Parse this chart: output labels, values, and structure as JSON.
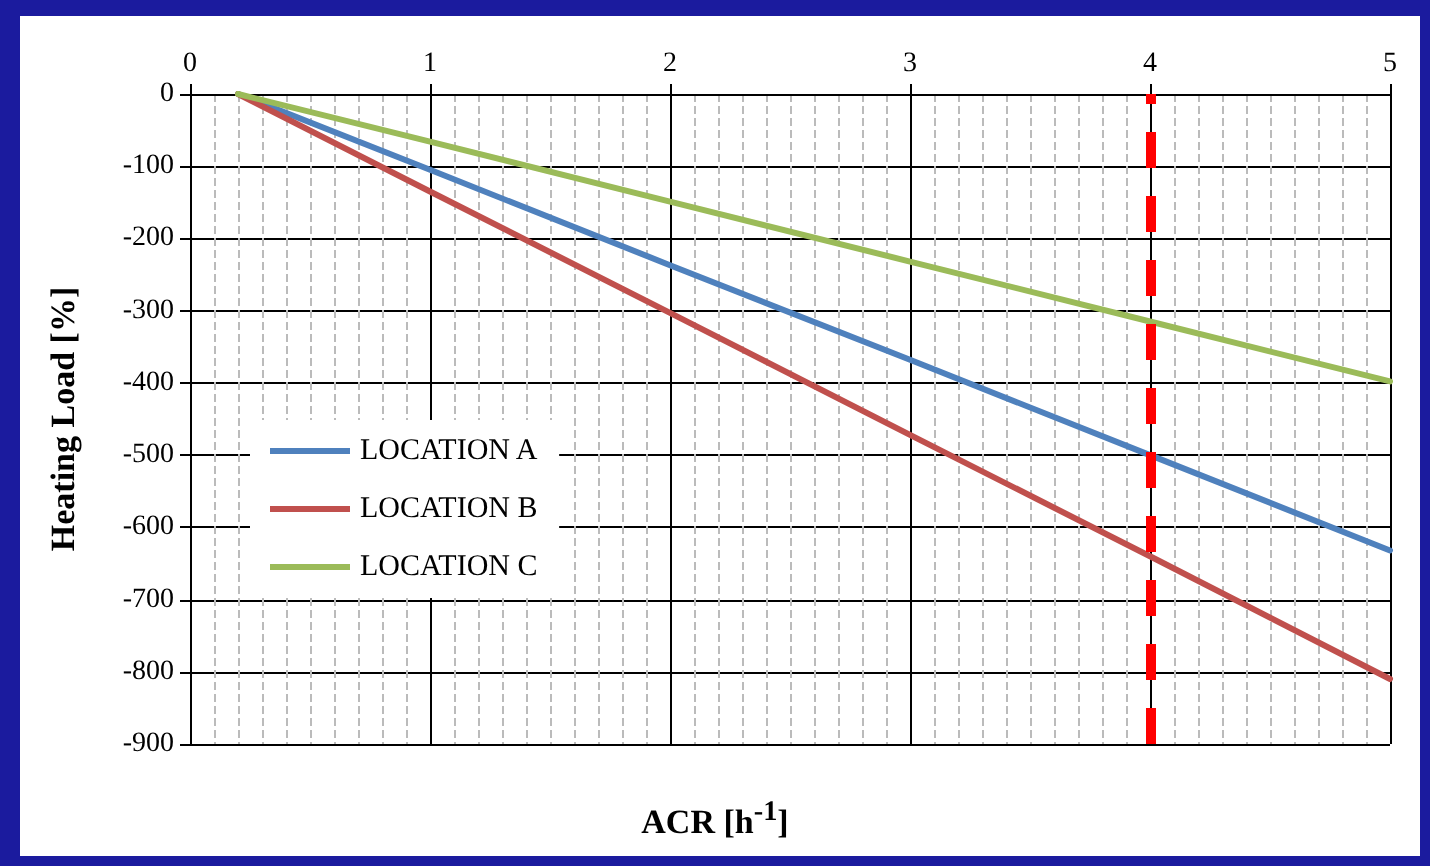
{
  "chart_data": {
    "type": "line",
    "xlabel": "ACR [h$^{-1}$]",
    "ylabel": "Heating Load [%]",
    "series": [
      {
        "name": "LOCATION A",
        "color": "#4f81bd",
        "x": [
          0.2,
          1,
          2,
          3,
          4,
          5
        ],
        "values": [
          0,
          -105,
          -237,
          -368,
          -500,
          -632
        ]
      },
      {
        "name": "LOCATION B",
        "color": "#c0504d",
        "x": [
          0.2,
          1,
          2,
          3,
          4,
          5
        ],
        "values": [
          0,
          -135,
          -303,
          -472,
          -640,
          -810
        ]
      },
      {
        "name": "LOCATION C",
        "color": "#9bbb59",
        "x": [
          0.2,
          1,
          2,
          3,
          4,
          5
        ],
        "values": [
          0,
          -66,
          -149,
          -232,
          -315,
          -398
        ]
      }
    ],
    "xlim": [
      0,
      5
    ],
    "xticks": [
      0,
      1,
      2,
      3,
      4,
      5
    ],
    "ylim": [
      -900,
      0
    ],
    "yticks": [
      0,
      -100,
      -200,
      -300,
      -400,
      -500,
      -600,
      -700,
      -800,
      -900
    ],
    "ref_lines": [
      {
        "axis": "x",
        "value": 4,
        "color": "#ff0000",
        "line_style": "dashed"
      }
    ],
    "grid": true,
    "legend": "left",
    "marker": "none",
    "line_style": "solid"
  }
}
